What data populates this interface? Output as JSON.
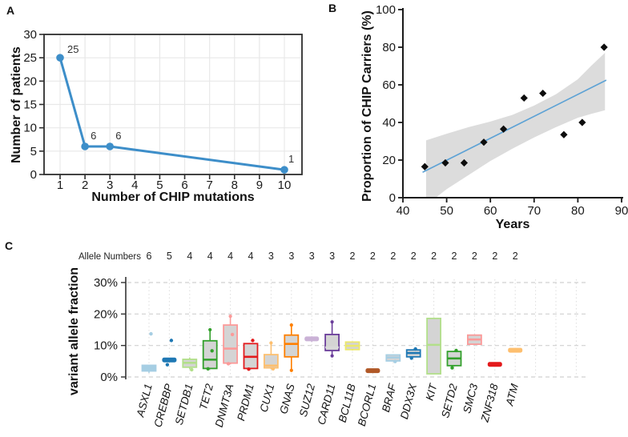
{
  "figure": {
    "panels": [
      {
        "id": "a",
        "letter": "A",
        "xlabel": "Number of CHIP mutations",
        "ylabel": "Number of patients"
      },
      {
        "id": "b",
        "letter": "B",
        "xlabel": "Years",
        "ylabel": "Proportion of CHIP Carriers (%)"
      },
      {
        "id": "c",
        "letter": "C",
        "ylabel": "variant allele fraction",
        "allele_header": "Allele Numbers"
      }
    ]
  },
  "chart_data": [
    {
      "id": "a",
      "type": "line",
      "title": "",
      "xlabel": "Number of CHIP mutations",
      "ylabel": "Number of patients",
      "x": [
        1,
        2,
        3,
        10
      ],
      "y": [
        25,
        6,
        6,
        1
      ],
      "point_labels": [
        "25",
        "6",
        "6",
        "1"
      ],
      "xticks": [
        1,
        2,
        3,
        4,
        5,
        6,
        7,
        8,
        9,
        10
      ],
      "yticks": [
        0,
        5,
        10,
        15,
        20,
        25,
        30
      ],
      "xlim": [
        0.4,
        10.7
      ],
      "ylim": [
        0,
        30
      ],
      "grid": true,
      "line_color": "#3d8ec9",
      "frame_color": "#2e2e2e",
      "grid_color": "#e8e8e8",
      "tick_color": "#1a1a1a"
    },
    {
      "id": "b",
      "type": "scatter",
      "title": "",
      "xlabel": "Years",
      "ylabel": "Proportion of CHIP Carriers (%)",
      "points": [
        [
          45,
          16.5
        ],
        [
          49.7,
          18.5
        ],
        [
          54,
          18.5
        ],
        [
          58.5,
          29.5
        ],
        [
          63,
          36.5
        ],
        [
          67.7,
          53
        ],
        [
          72,
          55.5
        ],
        [
          76.8,
          33.5
        ],
        [
          81,
          40
        ],
        [
          86,
          80
        ]
      ],
      "trend_line": {
        "x": [
          44.5,
          86.5
        ],
        "y": [
          13.5,
          62.5
        ],
        "color": "#5da2d5"
      },
      "confidence_band": {
        "upper": [
          [
            45.3,
            30.5
          ],
          [
            50,
            34
          ],
          [
            55,
            37.5
          ],
          [
            60,
            40.5
          ],
          [
            65,
            44
          ],
          [
            70,
            49
          ],
          [
            75,
            55
          ],
          [
            80,
            63
          ],
          [
            83,
            70
          ],
          [
            86.2,
            77
          ]
        ],
        "lower": [
          [
            45.3,
            0
          ],
          [
            47.5,
            0
          ],
          [
            50,
            4.5
          ],
          [
            55,
            12
          ],
          [
            60,
            19.5
          ],
          [
            65,
            26
          ],
          [
            70,
            32
          ],
          [
            75,
            37.5
          ],
          [
            80,
            42.5
          ],
          [
            83,
            44.5
          ],
          [
            86.2,
            46.5
          ]
        ],
        "color": "#dcdcdc"
      },
      "xticks": [
        40,
        50,
        60,
        70,
        80,
        90
      ],
      "yticks": [
        0,
        20,
        40,
        60,
        80,
        100
      ],
      "xlim": [
        40,
        90
      ],
      "ylim": [
        0,
        100
      ],
      "point_color": "#0d0d0d",
      "axis_color": "#1a1a1a",
      "grid": false
    },
    {
      "id": "c",
      "type": "boxplot",
      "title": "",
      "ylabel": "variant allele fraction",
      "allele_header": "Allele Numbers",
      "yticks": [
        0,
        10,
        20,
        30
      ],
      "ytick_suffix": "%",
      "ylim": [
        0,
        32
      ],
      "box_fill": "#d4d4d4",
      "grid_color": "#d0d0d0",
      "axis_color": "#333333",
      "boxes": [
        {
          "gene": "ASXL1",
          "allele_n": 6,
          "color": "#a6cee3",
          "solid": true,
          "q1": 1.9,
          "median": 2.7,
          "q3": 3.7,
          "lo": 1.3,
          "hi": 3.7,
          "pts": [
            13.7
          ]
        },
        {
          "gene": "CREBBP",
          "allele_n": 5,
          "color": "#1f78b4",
          "solid": true,
          "q1": 5.0,
          "median": 5.4,
          "q3": 5.8,
          "lo": 5.0,
          "hi": 5.8,
          "pts": [
            11.6,
            3.9
          ]
        },
        {
          "gene": "SETDB1",
          "allele_n": 4,
          "color": "#b2df8a",
          "q1": 3.1,
          "median": 4.5,
          "q3": 5.6,
          "lo": 2.5,
          "hi": 6.2,
          "pts": [
            2.3
          ]
        },
        {
          "gene": "TET2",
          "allele_n": 4,
          "color": "#33a02c",
          "q1": 2.7,
          "median": 5.5,
          "q3": 11.5,
          "lo": 2.5,
          "hi": 15.0,
          "pts": [
            8.3,
            2.6
          ]
        },
        {
          "gene": "DNMT3A",
          "allele_n": 4,
          "color": "#fb9a99",
          "q1": 4.4,
          "median": 9.0,
          "q3": 16.5,
          "lo": 4.0,
          "hi": 19.3,
          "pts": [
            13.5,
            4.2
          ]
        },
        {
          "gene": "PRDM1",
          "allele_n": 4,
          "color": "#e31a1c",
          "q1": 2.7,
          "median": 6.4,
          "q3": 10.6,
          "lo": 2.5,
          "hi": 10.6,
          "pts": [
            11.6,
            2.5
          ]
        },
        {
          "gene": "CUX1",
          "allele_n": 3,
          "color": "#fdbf6f",
          "q1": 2.9,
          "median": 3.6,
          "q3": 7.1,
          "lo": 2.5,
          "hi": 10.8,
          "pts": [
            2.6
          ]
        },
        {
          "gene": "GNAS",
          "allele_n": 3,
          "color": "#ff7f00",
          "q1": 6.4,
          "median": 10.5,
          "q3": 13.3,
          "lo": 2.1,
          "hi": 16.5,
          "pts": []
        },
        {
          "gene": "SUZ12",
          "allele_n": 3,
          "color": "#cab2d6",
          "solid": true,
          "q1": 11.7,
          "median": 12.1,
          "q3": 12.5,
          "lo": 11.1,
          "hi": 12.9,
          "pts": []
        },
        {
          "gene": "CARD11",
          "allele_n": 3,
          "color": "#6a3d9a",
          "median_color": "#d9d9d9",
          "q1": 8.4,
          "median": 9.4,
          "q3": 13.5,
          "lo": 6.7,
          "hi": 17.5,
          "pts": []
        },
        {
          "gene": "BCL11B",
          "allele_n": 2,
          "color": "#ece86b",
          "q1": 8.7,
          "median": 9.9,
          "q3": 11.1,
          "lo": 8.4,
          "hi": 11.3,
          "pts": []
        },
        {
          "gene": "BCORL1",
          "allele_n": 2,
          "color": "#b15928",
          "solid": true,
          "q1": 1.8,
          "median": 2.0,
          "q3": 2.2,
          "lo": 1.8,
          "hi": 2.2,
          "pts": []
        },
        {
          "gene": "BRAF",
          "allele_n": 2,
          "color": "#a6cee3",
          "q1": 5.1,
          "median": 6.2,
          "q3": 7.0,
          "lo": 4.9,
          "hi": 7.2,
          "pts": [
            4.9
          ]
        },
        {
          "gene": "DDX3X",
          "allele_n": 2,
          "color": "#1f78b4",
          "q1": 6.4,
          "median": 7.6,
          "q3": 8.6,
          "lo": 6.2,
          "hi": 8.8,
          "pts": [
            8.9,
            6.0
          ]
        },
        {
          "gene": "KIT",
          "allele_n": 2,
          "color": "#b2df8a",
          "q1": 1.0,
          "median": 10.2,
          "q3": 18.6,
          "lo": 0.8,
          "hi": 18.9,
          "pts": []
        },
        {
          "gene": "SETD2",
          "allele_n": 2,
          "color": "#33a02c",
          "q1": 3.6,
          "median": 5.9,
          "q3": 8.1,
          "lo": 3.4,
          "hi": 8.3,
          "pts": [
            8.4,
            2.9
          ]
        },
        {
          "gene": "SMC3",
          "allele_n": 2,
          "color": "#fb9a99",
          "q1": 10.4,
          "median": 11.9,
          "q3": 13.3,
          "lo": 10.2,
          "hi": 13.5,
          "pts": []
        },
        {
          "gene": "ZNF318",
          "allele_n": 2,
          "color": "#e31a1c",
          "solid": true,
          "q1": 3.8,
          "median": 4.0,
          "q3": 4.2,
          "lo": 3.8,
          "hi": 4.2,
          "pts": []
        },
        {
          "gene": "ATM",
          "allele_n": 2,
          "color": "#fdbf6f",
          "solid": true,
          "q1": 8.3,
          "median": 8.5,
          "q3": 8.7,
          "lo": 8.3,
          "hi": 8.7,
          "pts": []
        }
      ]
    }
  ]
}
